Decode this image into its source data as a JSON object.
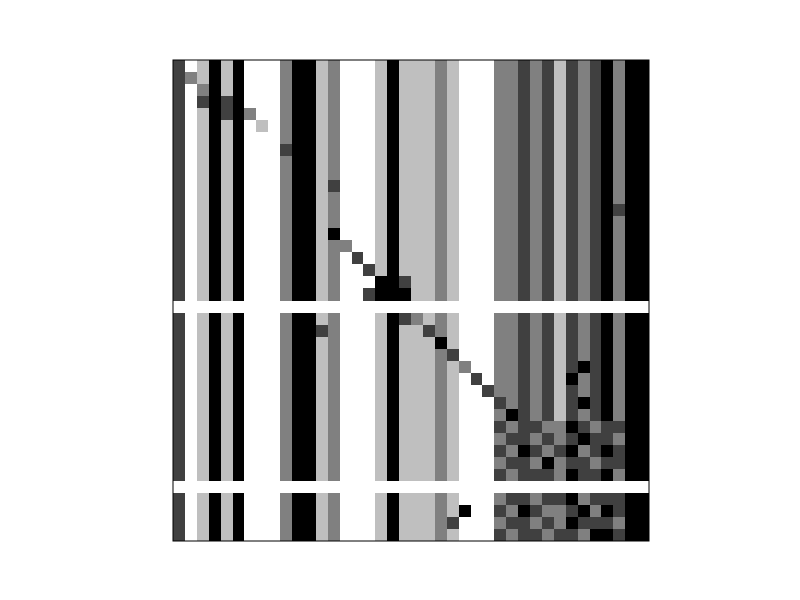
{
  "chart_data": {
    "type": "heatmap",
    "color": "gray",
    "tick_labels": false,
    "zlim": [
      0,
      4
    ],
    "cells": [
      [
        1,
        4,
        3,
        0,
        3,
        0,
        4,
        4,
        4,
        2,
        0,
        0,
        3,
        2,
        4,
        4,
        4,
        3,
        0,
        3,
        3,
        3,
        2,
        3,
        4,
        4,
        4,
        2,
        2,
        1,
        2,
        1,
        3,
        1,
        2,
        1,
        0,
        2,
        0,
        0
      ],
      [
        1,
        2,
        3,
        0,
        3,
        0,
        4,
        4,
        4,
        2,
        0,
        0,
        3,
        2,
        4,
        4,
        4,
        3,
        0,
        3,
        3,
        3,
        2,
        3,
        4,
        4,
        4,
        2,
        2,
        1,
        2,
        1,
        3,
        1,
        2,
        1,
        0,
        2,
        0,
        0
      ],
      [
        1,
        4,
        2,
        0,
        3,
        0,
        4,
        4,
        4,
        2,
        0,
        0,
        3,
        2,
        4,
        4,
        4,
        3,
        0,
        3,
        3,
        3,
        2,
        3,
        4,
        4,
        4,
        2,
        2,
        1,
        2,
        1,
        3,
        1,
        2,
        1,
        0,
        2,
        0,
        0
      ],
      [
        1,
        4,
        1,
        0,
        1,
        0,
        4,
        4,
        4,
        2,
        0,
        0,
        3,
        2,
        4,
        4,
        4,
        3,
        0,
        3,
        3,
        3,
        2,
        3,
        4,
        4,
        4,
        2,
        2,
        1,
        2,
        1,
        3,
        1,
        2,
        1,
        0,
        2,
        0,
        0
      ],
      [
        1,
        4,
        3,
        0,
        1,
        0,
        2,
        4,
        4,
        2,
        0,
        0,
        3,
        2,
        4,
        4,
        4,
        3,
        0,
        3,
        3,
        3,
        2,
        3,
        4,
        4,
        4,
        2,
        2,
        1,
        2,
        1,
        3,
        1,
        2,
        1,
        0,
        2,
        0,
        0
      ],
      [
        1,
        4,
        3,
        0,
        3,
        0,
        4,
        3,
        4,
        2,
        0,
        0,
        3,
        2,
        4,
        4,
        4,
        3,
        0,
        3,
        3,
        3,
        2,
        3,
        4,
        4,
        4,
        2,
        2,
        1,
        2,
        1,
        3,
        1,
        2,
        1,
        0,
        2,
        0,
        0
      ],
      [
        1,
        4,
        3,
        0,
        3,
        0,
        4,
        4,
        4,
        2,
        0,
        0,
        3,
        2,
        4,
        4,
        4,
        3,
        0,
        3,
        3,
        3,
        2,
        3,
        4,
        4,
        4,
        2,
        2,
        1,
        2,
        1,
        3,
        1,
        2,
        1,
        0,
        2,
        0,
        0
      ],
      [
        1,
        4,
        3,
        0,
        3,
        0,
        4,
        4,
        4,
        1,
        0,
        0,
        3,
        2,
        4,
        4,
        4,
        3,
        0,
        3,
        3,
        3,
        2,
        3,
        4,
        4,
        4,
        2,
        2,
        1,
        2,
        1,
        3,
        1,
        2,
        1,
        0,
        2,
        0,
        0
      ],
      [
        1,
        4,
        3,
        0,
        3,
        0,
        4,
        4,
        4,
        2,
        0,
        0,
        3,
        2,
        4,
        4,
        4,
        3,
        0,
        3,
        3,
        3,
        2,
        3,
        4,
        4,
        4,
        2,
        2,
        1,
        2,
        1,
        3,
        1,
        2,
        1,
        0,
        2,
        0,
        0
      ],
      [
        1,
        4,
        3,
        0,
        3,
        0,
        4,
        4,
        4,
        2,
        0,
        0,
        3,
        2,
        4,
        4,
        4,
        3,
        0,
        3,
        3,
        3,
        2,
        3,
        4,
        4,
        4,
        2,
        2,
        1,
        2,
        1,
        3,
        1,
        2,
        1,
        0,
        2,
        0,
        0
      ],
      [
        1,
        4,
        3,
        0,
        3,
        0,
        4,
        4,
        4,
        2,
        0,
        0,
        3,
        1,
        4,
        4,
        4,
        3,
        0,
        3,
        3,
        3,
        2,
        3,
        4,
        4,
        4,
        2,
        2,
        1,
        2,
        1,
        3,
        1,
        2,
        1,
        0,
        2,
        0,
        0
      ],
      [
        1,
        4,
        3,
        0,
        3,
        0,
        4,
        4,
        4,
        2,
        0,
        0,
        3,
        2,
        4,
        4,
        4,
        3,
        0,
        3,
        3,
        3,
        2,
        3,
        4,
        4,
        4,
        2,
        2,
        1,
        2,
        1,
        3,
        1,
        2,
        1,
        0,
        2,
        0,
        0
      ],
      [
        1,
        4,
        3,
        0,
        3,
        0,
        4,
        4,
        4,
        2,
        0,
        0,
        3,
        2,
        4,
        4,
        4,
        3,
        0,
        3,
        3,
        3,
        2,
        3,
        4,
        4,
        4,
        2,
        2,
        1,
        2,
        1,
        3,
        1,
        2,
        1,
        0,
        1,
        0,
        0
      ],
      [
        1,
        4,
        3,
        0,
        3,
        0,
        4,
        4,
        4,
        2,
        0,
        0,
        3,
        2,
        4,
        4,
        4,
        3,
        0,
        3,
        3,
        3,
        2,
        3,
        4,
        4,
        4,
        2,
        2,
        1,
        2,
        1,
        3,
        1,
        2,
        1,
        0,
        2,
        0,
        0
      ],
      [
        1,
        4,
        3,
        0,
        3,
        0,
        4,
        4,
        4,
        2,
        0,
        0,
        3,
        0,
        4,
        4,
        4,
        3,
        0,
        3,
        3,
        3,
        2,
        3,
        4,
        4,
        4,
        2,
        2,
        1,
        2,
        1,
        3,
        1,
        2,
        1,
        0,
        2,
        0,
        0
      ],
      [
        1,
        4,
        3,
        0,
        3,
        0,
        4,
        4,
        4,
        2,
        0,
        0,
        3,
        2,
        2,
        4,
        4,
        3,
        0,
        3,
        3,
        3,
        2,
        3,
        4,
        4,
        4,
        2,
        2,
        1,
        2,
        1,
        3,
        1,
        2,
        1,
        0,
        2,
        0,
        0
      ],
      [
        1,
        4,
        3,
        0,
        3,
        0,
        4,
        4,
        4,
        2,
        0,
        0,
        3,
        2,
        4,
        1,
        4,
        3,
        0,
        3,
        3,
        3,
        2,
        3,
        4,
        4,
        4,
        2,
        2,
        1,
        2,
        1,
        3,
        1,
        2,
        1,
        0,
        2,
        0,
        0
      ],
      [
        1,
        4,
        3,
        0,
        3,
        0,
        4,
        4,
        4,
        2,
        0,
        0,
        3,
        2,
        4,
        4,
        1,
        3,
        0,
        3,
        3,
        3,
        2,
        3,
        4,
        4,
        4,
        2,
        2,
        1,
        2,
        1,
        3,
        1,
        2,
        1,
        0,
        2,
        0,
        0
      ],
      [
        1,
        4,
        3,
        0,
        3,
        0,
        4,
        4,
        4,
        2,
        0,
        0,
        3,
        2,
        4,
        4,
        4,
        0,
        0,
        1,
        3,
        3,
        2,
        3,
        4,
        4,
        4,
        2,
        2,
        1,
        2,
        1,
        3,
        1,
        2,
        1,
        0,
        2,
        0,
        0
      ],
      [
        1,
        4,
        3,
        0,
        3,
        0,
        4,
        4,
        4,
        2,
        0,
        0,
        3,
        2,
        4,
        4,
        1,
        0,
        0,
        0,
        3,
        3,
        2,
        3,
        4,
        4,
        4,
        2,
        2,
        1,
        2,
        1,
        3,
        1,
        2,
        1,
        0,
        2,
        0,
        0
      ],
      [
        4,
        4,
        4,
        4,
        4,
        4,
        4,
        4,
        4,
        4,
        4,
        4,
        4,
        4,
        4,
        4,
        4,
        4,
        4,
        4,
        4,
        4,
        4,
        4,
        4,
        4,
        4,
        4,
        4,
        4,
        4,
        4,
        4,
        4,
        4,
        4,
        4,
        4,
        4,
        4
      ],
      [
        1,
        4,
        3,
        0,
        3,
        0,
        4,
        4,
        4,
        2,
        0,
        0,
        3,
        2,
        4,
        4,
        4,
        3,
        0,
        1,
        2,
        3,
        2,
        3,
        4,
        4,
        4,
        2,
        2,
        1,
        2,
        1,
        3,
        1,
        2,
        1,
        0,
        2,
        0,
        0
      ],
      [
        1,
        4,
        3,
        0,
        3,
        0,
        4,
        4,
        4,
        2,
        0,
        0,
        1,
        2,
        4,
        4,
        4,
        3,
        0,
        3,
        3,
        1,
        2,
        3,
        4,
        4,
        4,
        2,
        2,
        1,
        2,
        1,
        3,
        1,
        2,
        1,
        0,
        2,
        0,
        0
      ],
      [
        1,
        4,
        3,
        0,
        3,
        0,
        4,
        4,
        4,
        2,
        0,
        0,
        3,
        2,
        4,
        4,
        4,
        3,
        0,
        3,
        3,
        3,
        0,
        3,
        4,
        4,
        4,
        2,
        2,
        1,
        2,
        1,
        3,
        1,
        2,
        1,
        0,
        2,
        0,
        0
      ],
      [
        1,
        4,
        3,
        0,
        3,
        0,
        4,
        4,
        4,
        2,
        0,
        0,
        3,
        2,
        4,
        4,
        4,
        3,
        0,
        3,
        3,
        3,
        2,
        1,
        4,
        4,
        4,
        2,
        2,
        1,
        2,
        1,
        3,
        1,
        2,
        1,
        0,
        2,
        0,
        0
      ],
      [
        1,
        4,
        3,
        0,
        3,
        0,
        4,
        4,
        4,
        2,
        0,
        0,
        3,
        2,
        4,
        4,
        4,
        3,
        0,
        3,
        3,
        3,
        2,
        3,
        2,
        4,
        4,
        2,
        2,
        1,
        2,
        1,
        3,
        1,
        0,
        1,
        0,
        2,
        0,
        0
      ],
      [
        1,
        4,
        3,
        0,
        3,
        0,
        4,
        4,
        4,
        2,
        0,
        0,
        3,
        2,
        4,
        4,
        4,
        3,
        0,
        3,
        3,
        3,
        2,
        3,
        4,
        1,
        4,
        2,
        2,
        1,
        2,
        1,
        3,
        0,
        2,
        1,
        0,
        2,
        0,
        0
      ],
      [
        1,
        4,
        3,
        0,
        3,
        0,
        4,
        4,
        4,
        2,
        0,
        0,
        3,
        2,
        4,
        4,
        4,
        3,
        0,
        3,
        3,
        3,
        2,
        3,
        4,
        4,
        1,
        2,
        2,
        1,
        2,
        1,
        3,
        1,
        2,
        1,
        0,
        2,
        0,
        0
      ],
      [
        1,
        4,
        3,
        0,
        3,
        0,
        4,
        4,
        4,
        2,
        0,
        0,
        3,
        2,
        4,
        4,
        4,
        3,
        0,
        3,
        3,
        3,
        2,
        3,
        4,
        4,
        4,
        1,
        2,
        1,
        2,
        1,
        3,
        1,
        0,
        1,
        0,
        2,
        0,
        0
      ],
      [
        1,
        4,
        3,
        0,
        3,
        0,
        4,
        4,
        4,
        2,
        0,
        0,
        3,
        2,
        4,
        4,
        4,
        3,
        0,
        3,
        3,
        3,
        2,
        3,
        4,
        4,
        4,
        2,
        0,
        1,
        2,
        1,
        3,
        1,
        2,
        1,
        0,
        2,
        0,
        0
      ],
      [
        1,
        4,
        3,
        0,
        3,
        0,
        4,
        4,
        4,
        2,
        0,
        0,
        3,
        2,
        4,
        4,
        4,
        3,
        0,
        3,
        3,
        3,
        2,
        3,
        4,
        4,
        4,
        1,
        2,
        1,
        1,
        2,
        2,
        0,
        1,
        2,
        1,
        1,
        0,
        0
      ],
      [
        1,
        4,
        3,
        0,
        3,
        0,
        4,
        4,
        4,
        2,
        0,
        0,
        3,
        2,
        4,
        4,
        4,
        3,
        0,
        3,
        3,
        3,
        2,
        3,
        4,
        4,
        4,
        2,
        1,
        1,
        2,
        1,
        2,
        1,
        0,
        1,
        1,
        2,
        0,
        0
      ],
      [
        1,
        4,
        3,
        0,
        3,
        0,
        4,
        4,
        4,
        2,
        0,
        0,
        3,
        2,
        4,
        4,
        4,
        3,
        0,
        3,
        3,
        3,
        2,
        3,
        4,
        4,
        4,
        1,
        2,
        0,
        1,
        2,
        1,
        0,
        2,
        1,
        0,
        1,
        0,
        0
      ],
      [
        1,
        4,
        3,
        0,
        3,
        0,
        4,
        4,
        4,
        2,
        0,
        0,
        3,
        2,
        4,
        4,
        4,
        3,
        0,
        3,
        3,
        3,
        2,
        3,
        4,
        4,
        4,
        2,
        1,
        1,
        2,
        0,
        2,
        1,
        1,
        2,
        1,
        1,
        0,
        0
      ],
      [
        1,
        4,
        3,
        0,
        3,
        0,
        4,
        4,
        4,
        2,
        0,
        0,
        3,
        2,
        4,
        4,
        4,
        3,
        0,
        3,
        3,
        3,
        2,
        3,
        4,
        4,
        4,
        1,
        2,
        1,
        1,
        1,
        2,
        0,
        1,
        1,
        0,
        2,
        0,
        0
      ],
      [
        4,
        4,
        4,
        4,
        4,
        4,
        4,
        4,
        4,
        4,
        4,
        4,
        4,
        4,
        4,
        4,
        4,
        4,
        4,
        4,
        4,
        4,
        4,
        4,
        4,
        4,
        4,
        4,
        4,
        4,
        4,
        4,
        4,
        4,
        4,
        4,
        4,
        4,
        4,
        4
      ],
      [
        1,
        4,
        3,
        0,
        3,
        0,
        4,
        4,
        4,
        2,
        0,
        0,
        3,
        2,
        4,
        4,
        4,
        3,
        0,
        3,
        3,
        3,
        2,
        3,
        4,
        4,
        4,
        2,
        1,
        1,
        2,
        1,
        1,
        0,
        2,
        1,
        1,
        1,
        0,
        0
      ],
      [
        1,
        4,
        3,
        0,
        3,
        0,
        4,
        4,
        4,
        2,
        0,
        0,
        3,
        2,
        4,
        4,
        4,
        3,
        0,
        3,
        3,
        3,
        2,
        3,
        0,
        4,
        4,
        1,
        2,
        0,
        1,
        2,
        2,
        1,
        0,
        2,
        0,
        1,
        0,
        0
      ],
      [
        1,
        4,
        3,
        0,
        3,
        0,
        4,
        4,
        4,
        2,
        0,
        0,
        3,
        2,
        4,
        4,
        4,
        3,
        0,
        3,
        3,
        3,
        2,
        1,
        4,
        4,
        4,
        2,
        1,
        1,
        2,
        1,
        2,
        0,
        1,
        1,
        1,
        2,
        0,
        0
      ],
      [
        1,
        4,
        3,
        0,
        3,
        0,
        4,
        4,
        4,
        2,
        0,
        0,
        3,
        2,
        4,
        4,
        4,
        3,
        0,
        3,
        3,
        3,
        2,
        3,
        4,
        4,
        4,
        1,
        2,
        1,
        1,
        2,
        1,
        1,
        2,
        0,
        0,
        1,
        0,
        0
      ]
    ]
  }
}
